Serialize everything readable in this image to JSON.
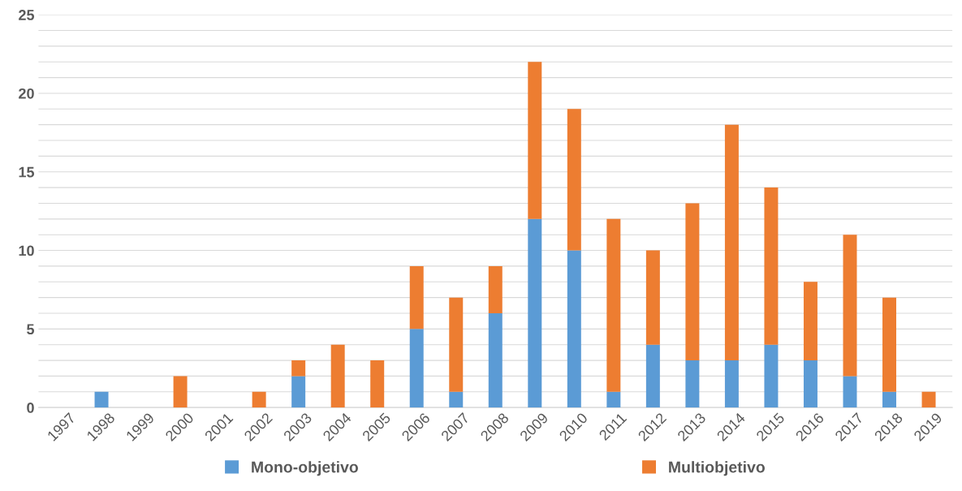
{
  "chart_data": {
    "type": "bar",
    "stacked": true,
    "categories": [
      "1997",
      "1998",
      "1999",
      "2000",
      "2001",
      "2002",
      "2003",
      "2004",
      "2005",
      "2006",
      "2007",
      "2008",
      "2009",
      "2010",
      "2011",
      "2012",
      "2013",
      "2014",
      "2015",
      "2016",
      "2017",
      "2018",
      "2019"
    ],
    "series": [
      {
        "name": "Mono-objetivo",
        "color": "#5b9bd5",
        "values": [
          0,
          1,
          0,
          0,
          0,
          0,
          2,
          0,
          0,
          5,
          1,
          6,
          12,
          10,
          1,
          4,
          3,
          3,
          4,
          3,
          2,
          1,
          0
        ]
      },
      {
        "name": "Multiobjetivo",
        "color": "#ed7d31",
        "values": [
          0,
          0,
          0,
          2,
          0,
          1,
          1,
          4,
          3,
          4,
          6,
          3,
          10,
          9,
          11,
          6,
          10,
          15,
          10,
          5,
          9,
          6,
          1
        ]
      }
    ],
    "ylim": [
      0,
      25
    ],
    "yticks": [
      0,
      {
        "value": 1,
        "label": null
      },
      {
        "value": 2,
        "label": null
      },
      {
        "value": 3,
        "label": null
      },
      {
        "value": 4,
        "label": null
      },
      5,
      {
        "value": 6,
        "label": null
      },
      {
        "value": 7,
        "label": null
      },
      {
        "value": 8,
        "label": null
      },
      {
        "value": 9,
        "label": null
      },
      10,
      {
        "value": 11,
        "label": null
      },
      {
        "value": 12,
        "label": null
      },
      {
        "value": 13,
        "label": null
      },
      {
        "value": 14,
        "label": null
      },
      15,
      {
        "value": 16,
        "label": null
      },
      {
        "value": 17,
        "label": null
      },
      {
        "value": 18,
        "label": null
      },
      {
        "value": 19,
        "label": null
      },
      20,
      {
        "value": 21,
        "label": null
      },
      {
        "value": 22,
        "label": null
      },
      {
        "value": 23,
        "label": null
      },
      {
        "value": 24,
        "label": null
      },
      25
    ],
    "grid": "y",
    "legend": "bottom"
  }
}
